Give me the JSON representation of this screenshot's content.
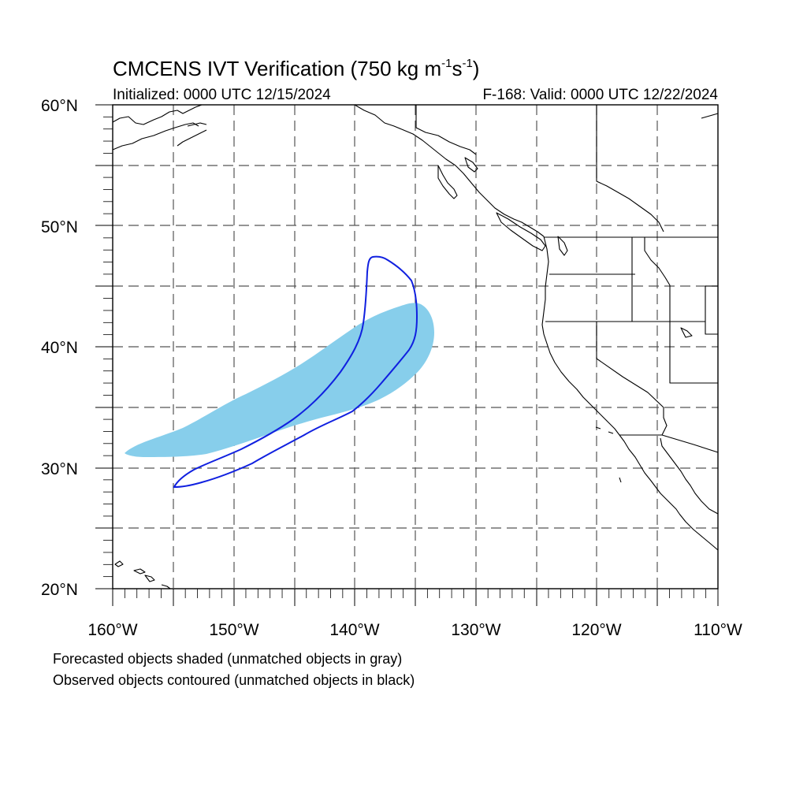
{
  "header": {
    "title_main": "CMCENS IVT Verification (750 kg m",
    "title_exp1": "-1",
    "title_mid": "s",
    "title_exp2": "-1",
    "title_end": ")",
    "initialized": "Initialized: 0000 UTC 12/15/2024",
    "valid": "F-168: Valid: 0000 UTC 12/22/2024"
  },
  "axes": {
    "lat_labels": [
      "60°N",
      "50°N",
      "40°N",
      "30°N",
      "20°N"
    ],
    "lon_labels": [
      "160°W",
      "150°W",
      "140°W",
      "130°W",
      "120°W",
      "110°W"
    ],
    "lat_range": [
      20,
      60
    ],
    "lon_range": [
      -160,
      -110
    ],
    "grid_spacing_deg": 5,
    "grid": true
  },
  "legend": {
    "line1": "Forecasted objects shaded (unmatched objects in gray)",
    "line2": "Observed objects contoured (unmatched objects in black)"
  },
  "colors": {
    "forecast_fill": "#87ceeb",
    "observed_contour": "#1020e0",
    "coastline": "#000000",
    "grid": "#555555"
  },
  "map": {
    "region": "Northeast Pacific and western North America",
    "forecast_object": "matched forecast IVT object (shaded)",
    "observed_object": "matched observed IVT object (contoured)"
  }
}
